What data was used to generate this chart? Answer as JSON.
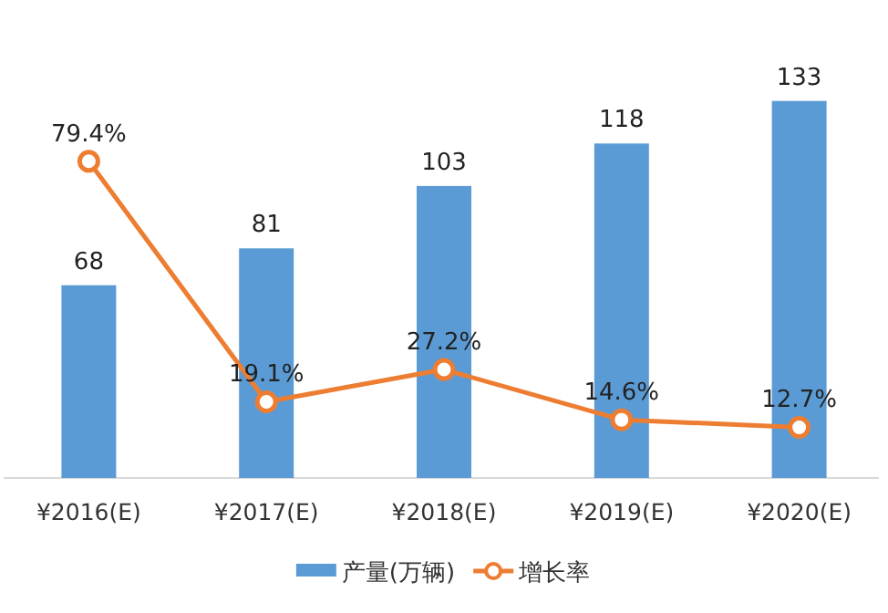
{
  "chart_data": {
    "type": "bar",
    "categories": [
      "¥2016(E)",
      "¥2017(E)",
      "¥2018(E)",
      "¥2019(E)",
      "¥2020(E)"
    ],
    "series": [
      {
        "name": "产量(万辆)",
        "color": "#5b9bd5",
        "values": [
          68,
          81,
          103,
          118,
          133
        ]
      },
      {
        "name": "增长率",
        "type": "line",
        "axis": "y2",
        "color": "#ed7d31",
        "values": [
          79.4,
          19.1,
          27.2,
          14.6,
          12.7
        ],
        "value_labels": [
          "79.4%",
          "19.1%",
          "27.2%",
          "14.6%",
          "12.7%"
        ]
      }
    ],
    "data_labels": true,
    "marker": "circle",
    "legend": "bottom"
  }
}
